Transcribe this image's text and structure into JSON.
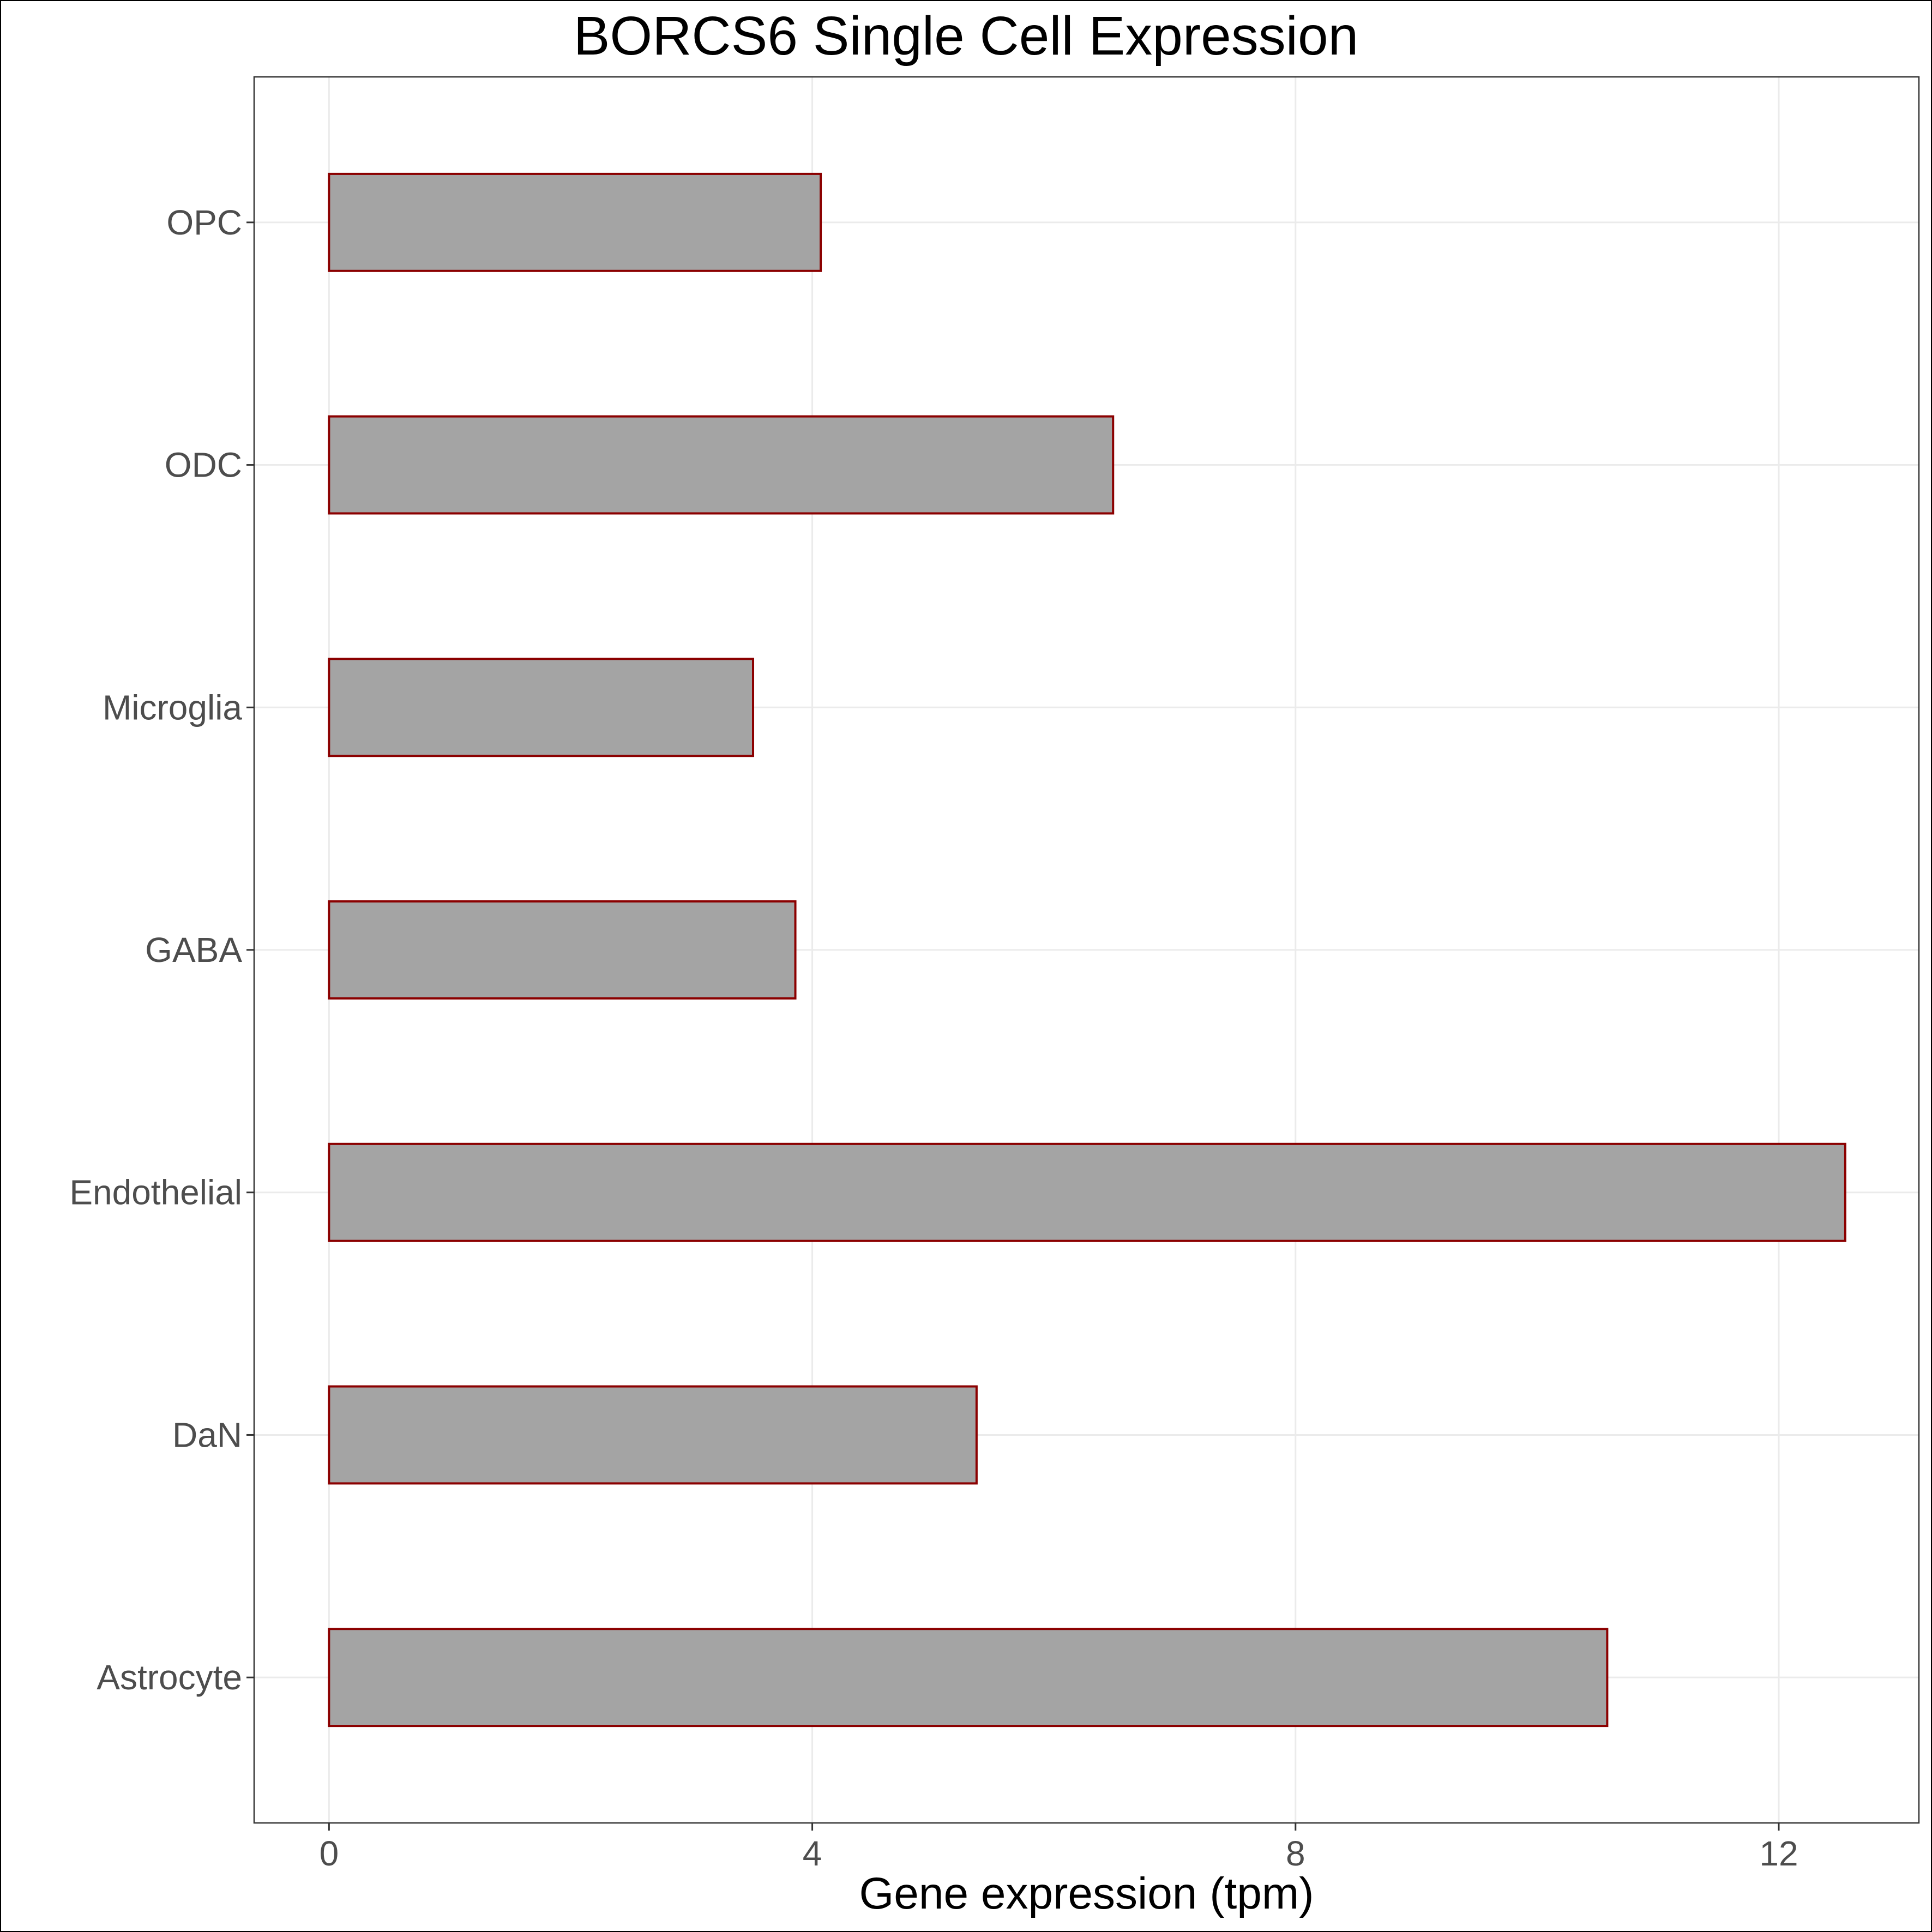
{
  "chart_data": {
    "type": "bar",
    "orientation": "horizontal",
    "title": "BORCS6 Single Cell Expression",
    "xlabel": "Gene expression (tpm)",
    "ylabel": "",
    "categories": [
      "Astrocyte",
      "DaN",
      "Endothelial",
      "GABA",
      "Microglia",
      "ODC",
      "OPC"
    ],
    "values": [
      10.58,
      5.36,
      12.55,
      3.86,
      3.51,
      6.49,
      4.07
    ],
    "xlim": [
      -0.62,
      13.16
    ],
    "xticks": [
      0,
      4,
      8,
      12
    ],
    "grid": true,
    "legend": "none",
    "colors": {
      "bar_fill": "#a4a4a4",
      "bar_stroke": "#8b0000",
      "grid": "#ebebeb",
      "panel_border": "#333333"
    }
  }
}
